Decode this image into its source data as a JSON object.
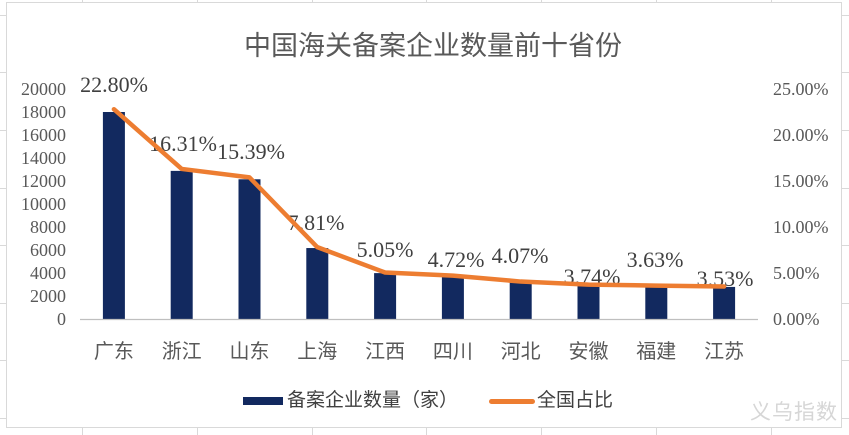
{
  "watermark": "义乌指数",
  "colors": {
    "bar": "#12295F",
    "line": "#ED7D31",
    "axis_text": "#595959",
    "data_label_text": "#404040",
    "title_text": "#595959",
    "axis_line": "#BFBFBF",
    "frame": "#D9D9D9",
    "watermark": "#D6D6D6"
  },
  "chart_data": {
    "type": "bar",
    "subtype": "combo-bar-line-dual-axis",
    "title": "中国海关备案企业数量前十省份",
    "categories": [
      "广东",
      "浙江",
      "山东",
      "上海",
      "江西",
      "四川",
      "河北",
      "安徽",
      "福建",
      "江苏"
    ],
    "series": [
      {
        "name": "备案企业数量（家）",
        "type": "bar",
        "y_axis": "left",
        "color": "#12295F",
        "values": [
          18000,
          12880,
          12150,
          6170,
          3990,
          3730,
          3210,
          2950,
          2870,
          2790
        ]
      },
      {
        "name": "全国占比",
        "type": "line",
        "y_axis": "right",
        "color": "#ED7D31",
        "values": [
          22.8,
          16.31,
          15.39,
          7.81,
          5.05,
          4.72,
          4.07,
          3.74,
          3.63,
          3.53
        ],
        "point_labels": [
          "22.80%",
          "16.31%",
          "15.39%",
          "7.81%",
          "5.05%",
          "4.72%",
          "4.07%",
          "3.74%",
          "3.63%",
          "3.53%"
        ]
      }
    ],
    "left_axis": {
      "min": 0,
      "max": 20000,
      "step": 2000,
      "tick_labels": [
        "20000",
        "18000",
        "16000",
        "14000",
        "12000",
        "10000",
        "8000",
        "6000",
        "4000",
        "2000",
        "0"
      ]
    },
    "right_axis": {
      "min": 0,
      "max": 25,
      "step": 5,
      "tick_labels": [
        "25.00%",
        "20.00%",
        "15.00%",
        "10.00%",
        "5.00%",
        "0.00%"
      ]
    },
    "legend_position": "bottom",
    "grid": false
  }
}
